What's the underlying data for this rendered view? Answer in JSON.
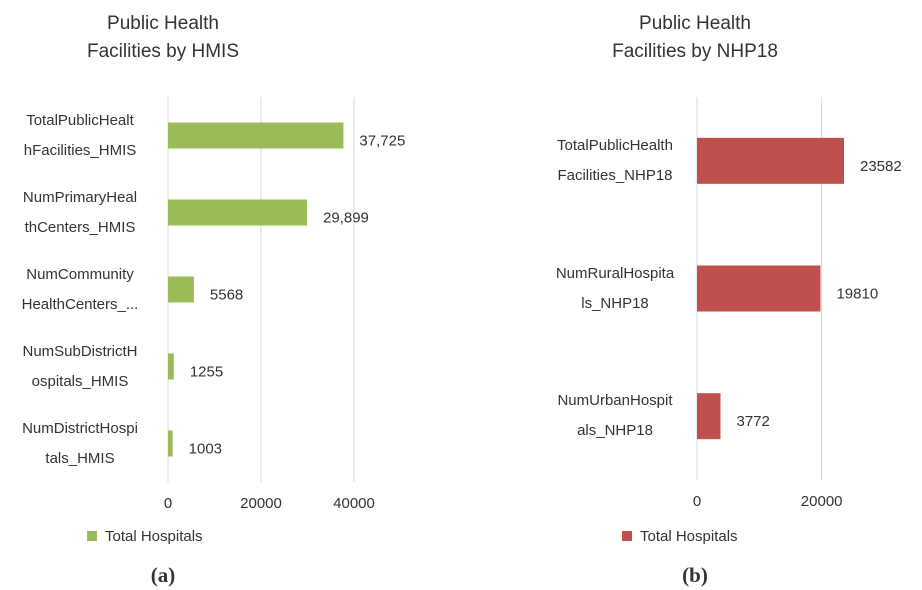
{
  "chart_data": [
    {
      "type": "bar",
      "orientation": "horizontal",
      "title": "Public Health\nFacilities by HMIS",
      "categories": [
        "TotalPublicHealt\nhFacilities_HMIS",
        "NumPrimaryHeal\nthCenters_HMIS",
        "NumCommunity\nHealthCenters_...",
        "NumSubDistrictH\nospitals_HMIS",
        "NumDistrictHospi\ntals_HMIS"
      ],
      "series": [
        {
          "name": "Total Hospitals",
          "color": "#9bbb59",
          "values": [
            37725,
            29899,
            5568,
            1255,
            1003
          ],
          "value_labels": [
            "37,725",
            "29,899",
            "5568",
            "1255",
            "1003"
          ]
        }
      ],
      "xlim": [
        0,
        40000
      ],
      "xticks": [
        0,
        20000,
        40000
      ],
      "grid": true,
      "legend": "bottom",
      "caption": "(a)"
    },
    {
      "type": "bar",
      "orientation": "horizontal",
      "title": "Public Health\nFacilities by NHP18",
      "categories": [
        "TotalPublicHealth\nFacilities_NHP18",
        "NumRuralHospita\nls_NHP18",
        "NumUrbanHospit\nals_NHP18"
      ],
      "series": [
        {
          "name": "Total Hospitals",
          "color": "#c0504d",
          "values": [
            23582,
            19810,
            3772
          ]
        }
      ],
      "xlim": [
        0,
        30000
      ],
      "xticks": [
        0,
        20000
      ],
      "grid": true,
      "legend": "bottom",
      "caption": "(b)"
    }
  ]
}
